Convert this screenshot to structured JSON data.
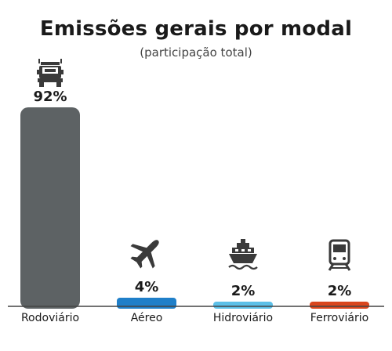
{
  "chart_data": {
    "type": "bar",
    "title": "Emissões gerais por modal",
    "subtitle": "(participação total)",
    "categories": [
      "Rodoviário",
      "Aéreo",
      "Hidroviário",
      "Ferroviário"
    ],
    "values": [
      92,
      4,
      2,
      2
    ],
    "data_labels": [
      "92%",
      "4%",
      "2%",
      "2%"
    ],
    "colors": [
      "#5d6264",
      "#1f7fc9",
      "#5cc0e8",
      "#d9461e"
    ],
    "icons": [
      "truck-icon",
      "airplane-icon",
      "ship-icon",
      "train-icon"
    ],
    "ylim": [
      0,
      100
    ],
    "grid": false,
    "legend": "none",
    "axis_color": "#444444"
  }
}
